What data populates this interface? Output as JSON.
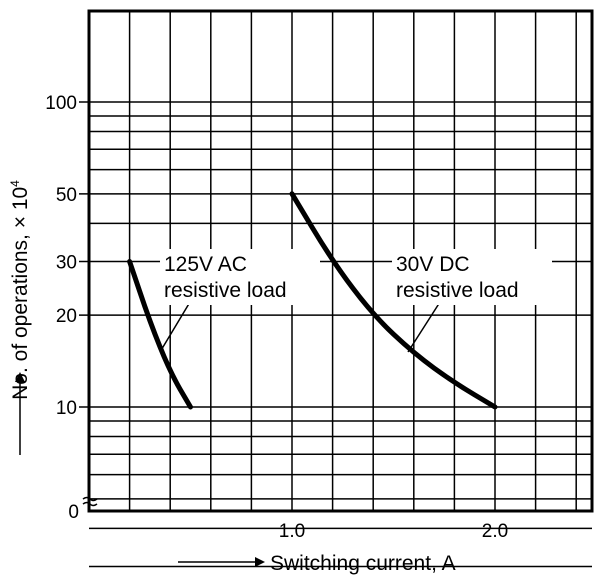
{
  "chart_data": {
    "type": "line",
    "xlabel": "Switching current, A",
    "ylabel": "No. of operations, × 10",
    "ylabel_exponent": "4",
    "y_scale": "log",
    "xlim": [
      0,
      2.5
    ],
    "x_ticks": [
      {
        "value": 1.0,
        "label": "1.0"
      },
      {
        "value": 2.0,
        "label": "2.0"
      }
    ],
    "y_ticks": [
      {
        "value": 100,
        "label": "100"
      },
      {
        "value": 50,
        "label": "50"
      },
      {
        "value": 30,
        "label": "30"
      },
      {
        "value": 20,
        "label": "20"
      },
      {
        "value": 10,
        "label": "10"
      }
    ],
    "y_zero_label": "0",
    "grid": true,
    "series": [
      {
        "name": "125V AC resistive load",
        "label_lines": [
          "125V AC",
          "resistive load"
        ],
        "x": [
          0.2,
          0.3,
          0.4,
          0.5
        ],
        "y": [
          30,
          19,
          13,
          10
        ]
      },
      {
        "name": "30V DC resistive load",
        "label_lines": [
          "30V DC",
          "resistive load"
        ],
        "x": [
          1.0,
          1.2,
          1.4,
          1.6,
          1.8,
          2.0
        ],
        "y": [
          50,
          30,
          20,
          15,
          12,
          10
        ]
      }
    ]
  }
}
